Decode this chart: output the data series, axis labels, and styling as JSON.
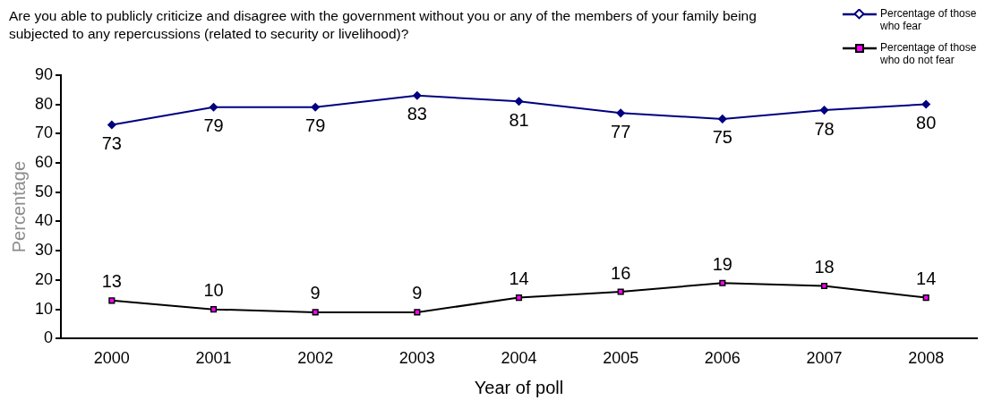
{
  "chart_data": {
    "type": "line",
    "title": "Are you able to publicly criticize and disagree with the government without you or any of the members of your family being subjected to any repercussions (related to security or livelihood)?",
    "xlabel": "Year of poll",
    "ylabel": "Percentage",
    "categories": [
      "2000",
      "2001",
      "2002",
      "2003",
      "2004",
      "2005",
      "2006",
      "2007",
      "2008"
    ],
    "series": [
      {
        "name": "Percentage of those who fear",
        "color": "#000080",
        "marker": "diamond",
        "values": [
          73,
          79,
          79,
          83,
          81,
          77,
          75,
          78,
          80
        ]
      },
      {
        "name": "Percentage of those who do not fear",
        "color": "#000000",
        "marker": "square",
        "values": [
          13,
          10,
          9,
          9,
          14,
          16,
          19,
          18,
          14
        ]
      }
    ],
    "ylim": [
      0,
      90
    ],
    "yticks": [
      0,
      10,
      20,
      30,
      40,
      50,
      60,
      70,
      80,
      90
    ],
    "data_labels": true,
    "grid": false,
    "legend": "top right"
  }
}
